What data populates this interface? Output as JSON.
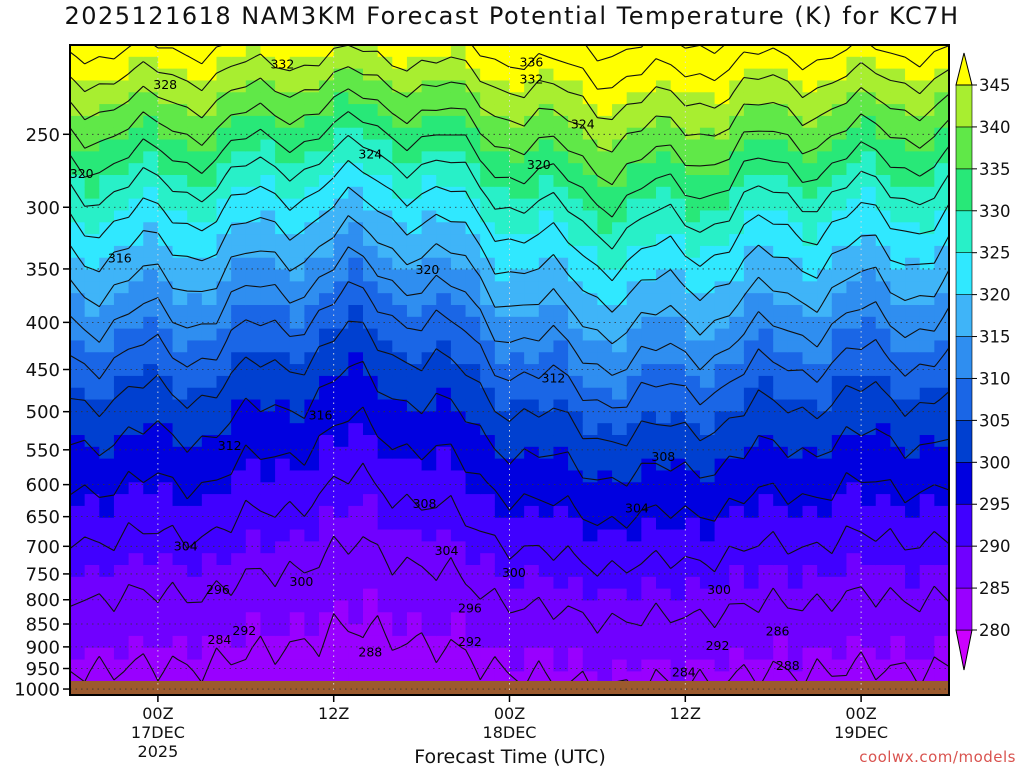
{
  "chart_data": {
    "type": "heatmap",
    "title": "2025121618 NAM3KM Forecast Potential Temperature (K) for KC7H",
    "xlabel": "Forecast Time (UTC)",
    "ylabel": "",
    "credit": "coolwx.com/models",
    "x_ticks": [
      {
        "hour": 6,
        "label": [
          "00Z",
          "17DEC",
          "2025"
        ]
      },
      {
        "hour": 18,
        "label": [
          "12Z"
        ]
      },
      {
        "hour": 30,
        "label": [
          "00Z",
          "18DEC"
        ]
      },
      {
        "hour": 42,
        "label": [
          "12Z"
        ]
      },
      {
        "hour": 54,
        "label": [
          "00Z",
          "19DEC"
        ]
      }
    ],
    "xlim": [
      0,
      60
    ],
    "y_ticks": [
      250,
      300,
      350,
      400,
      450,
      500,
      550,
      600,
      650,
      700,
      750,
      800,
      850,
      900,
      950,
      1000
    ],
    "ylim_hPa": [
      1015,
      200
    ],
    "y_scale": "log",
    "colorbar": {
      "levels": [
        280,
        285,
        290,
        295,
        300,
        305,
        310,
        315,
        320,
        325,
        330,
        335,
        340,
        345
      ],
      "colors": [
        "#cc00ff",
        "#9900ff",
        "#7000ff",
        "#4000ff",
        "#0000e0",
        "#0040d0",
        "#1a66e6",
        "#2f8ef0",
        "#3fb4f8",
        "#30e8ff",
        "#28f0c8",
        "#28e878",
        "#60e848",
        "#a8ee30",
        "#ffff00"
      ]
    },
    "contour_labels": [
      {
        "text": "332",
        "t": 14.5,
        "p": 210
      },
      {
        "text": "328",
        "t": 6.5,
        "p": 221
      },
      {
        "text": "336",
        "t": 31.5,
        "p": 209
      },
      {
        "text": "332",
        "t": 31.5,
        "p": 218
      },
      {
        "text": "324",
        "t": 20.5,
        "p": 263
      },
      {
        "text": "324",
        "t": 35,
        "p": 244
      },
      {
        "text": "320",
        "t": 0.8,
        "p": 276
      },
      {
        "text": "320",
        "t": 32,
        "p": 270
      },
      {
        "text": "320",
        "t": 24.4,
        "p": 351
      },
      {
        "text": "316",
        "t": 3.4,
        "p": 341
      },
      {
        "text": "316",
        "t": 17.1,
        "p": 505
      },
      {
        "text": "312",
        "t": 10.9,
        "p": 545
      },
      {
        "text": "312",
        "t": 33,
        "p": 460
      },
      {
        "text": "308",
        "t": 24.2,
        "p": 630
      },
      {
        "text": "308",
        "t": 40.5,
        "p": 560
      },
      {
        "text": "304",
        "t": 7.9,
        "p": 700
      },
      {
        "text": "304",
        "t": 25.7,
        "p": 708
      },
      {
        "text": "304",
        "t": 38.7,
        "p": 637
      },
      {
        "text": "300",
        "t": 15.8,
        "p": 765
      },
      {
        "text": "300",
        "t": 30.3,
        "p": 748
      },
      {
        "text": "300",
        "t": 44.3,
        "p": 781
      },
      {
        "text": "296",
        "t": 10.1,
        "p": 781
      },
      {
        "text": "296",
        "t": 27.3,
        "p": 818
      },
      {
        "text": "292",
        "t": 11.9,
        "p": 865
      },
      {
        "text": "292",
        "t": 27.3,
        "p": 889
      },
      {
        "text": "292",
        "t": 44.2,
        "p": 898
      },
      {
        "text": "288",
        "t": 20.5,
        "p": 913
      },
      {
        "text": "288",
        "t": 49,
        "p": 944
      },
      {
        "text": "286",
        "t": 48.3,
        "p": 866
      },
      {
        "text": "284",
        "t": 10.2,
        "p": 885
      },
      {
        "text": "284",
        "t": 41.9,
        "p": 960
      }
    ]
  }
}
